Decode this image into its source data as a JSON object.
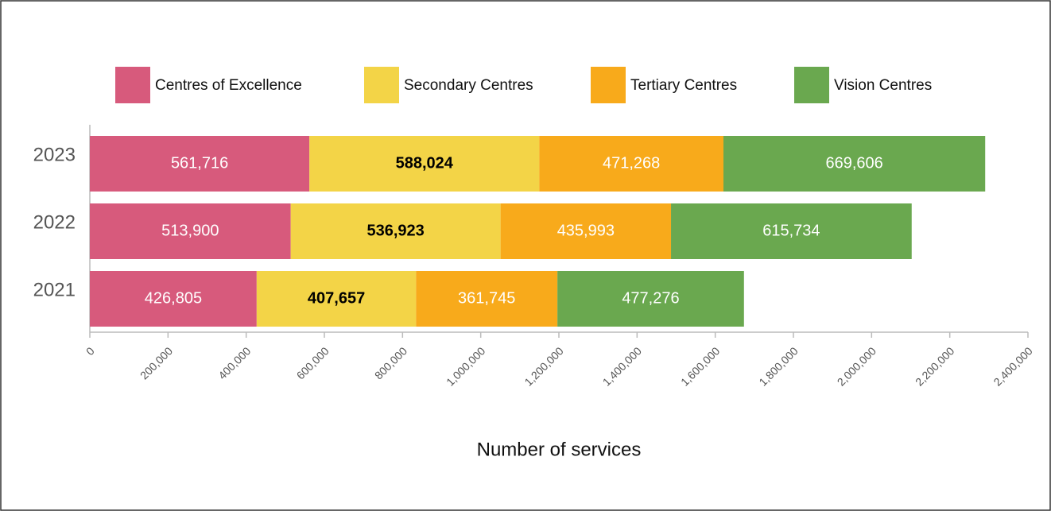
{
  "chart_data": {
    "type": "stacked_barh",
    "x_label": "Number of  services",
    "categories": [
      "2023",
      "2022",
      "2021"
    ],
    "series": [
      {
        "name": "Centres of Excellence",
        "color": "#d75a7c",
        "label_color": "#ffffff",
        "values": [
          561716,
          513900,
          426805
        ],
        "value_labels": [
          "561,716",
          "513,900",
          "426,805"
        ]
      },
      {
        "name": "Secondary Centres",
        "color": "#f3d447",
        "label_color": "#000000",
        "values": [
          588024,
          536923,
          407657
        ],
        "value_labels": [
          "588,024",
          "536,923",
          "407,657"
        ]
      },
      {
        "name": "Tertiary Centres",
        "color": "#f8aa1b",
        "label_color": "#ffffff",
        "values": [
          471268,
          435993,
          361745
        ],
        "value_labels": [
          "471,268",
          "435,993",
          "361,745"
        ]
      },
      {
        "name": "Vision Centres",
        "color": "#6aa84f",
        "label_color": "#ffffff",
        "values": [
          669606,
          615734,
          477276
        ],
        "value_labels": [
          "669,606",
          "615,734",
          "477,276"
        ]
      }
    ],
    "xlim": [
      0,
      2400000
    ],
    "xticks": [
      0,
      {
        "value": 200000,
        "label": "200,000"
      },
      {
        "value": 400000,
        "label": "400,000"
      },
      {
        "value": 600000,
        "label": "600,000"
      },
      {
        "value": 800000,
        "label": "800,000"
      },
      {
        "value": 1000000,
        "label": "1,000,000"
      },
      {
        "value": 1200000,
        "label": "1,200,000"
      },
      {
        "value": 1400000,
        "label": "1,400,000"
      },
      {
        "value": 1600000,
        "label": "1,600,000"
      },
      {
        "value": 1800000,
        "label": "1,800,000"
      },
      {
        "value": 2000000,
        "label": "2,000,000"
      },
      {
        "value": 2200000,
        "label": "2,200,000"
      },
      {
        "value": 2400000,
        "label": "2,400,000"
      }
    ]
  }
}
